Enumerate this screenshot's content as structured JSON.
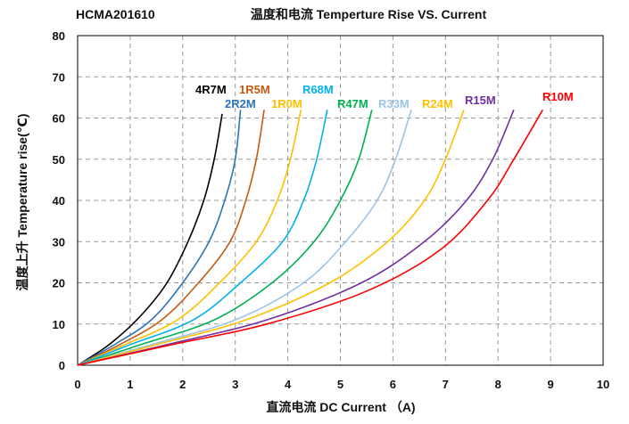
{
  "part_number": "HCMA201610",
  "chart_data": {
    "type": "line",
    "title": "温度和电流 Temperture Rise VS. Current",
    "xlabel": "直流电流 DC Current （A)",
    "ylabel": "温度上升 Temperature rise(℃)",
    "xlim": [
      0,
      10
    ],
    "ylim": [
      0,
      80
    ],
    "xticks": [
      0,
      1,
      2,
      3,
      4,
      5,
      6,
      7,
      8,
      9,
      10
    ],
    "yticks": [
      0,
      10,
      20,
      30,
      40,
      50,
      60,
      70,
      80
    ],
    "grid": true,
    "series": [
      {
        "name": "4R7M",
        "color": "#000000",
        "x": [
          0,
          0.6,
          1.2,
          1.7,
          2.1,
          2.4,
          2.6,
          2.75
        ],
        "y": [
          0,
          5,
          12,
          20,
          30,
          40,
          50,
          61
        ]
      },
      {
        "name": "2R2M",
        "color": "#2e74b5",
        "x": [
          0,
          0.7,
          1.4,
          2.0,
          2.5,
          2.8,
          3.0,
          3.1
        ],
        "y": [
          0,
          5,
          11,
          20,
          30,
          40,
          50,
          62
        ]
      },
      {
        "name": "1R5M",
        "color": "#c55a11",
        "x": [
          0,
          0.8,
          1.6,
          2.3,
          2.9,
          3.2,
          3.4,
          3.55
        ],
        "y": [
          0,
          5,
          11,
          20,
          30,
          40,
          50,
          62
        ]
      },
      {
        "name": "1R0M",
        "color": "#ffc000",
        "x": [
          0,
          0.9,
          1.9,
          2.7,
          3.4,
          3.8,
          4.05,
          4.25
        ],
        "y": [
          0,
          5,
          11,
          20,
          30,
          40,
          50,
          62
        ]
      },
      {
        "name": "R68M",
        "color": "#00b0f0",
        "x": [
          0,
          1.0,
          2.2,
          3.1,
          3.9,
          4.3,
          4.55,
          4.75
        ],
        "y": [
          0,
          5,
          11,
          20,
          30,
          40,
          50,
          62
        ]
      },
      {
        "name": "R47M",
        "color": "#00b050",
        "x": [
          0,
          1.2,
          2.6,
          3.7,
          4.5,
          5.0,
          5.35,
          5.6
        ],
        "y": [
          0,
          5,
          11,
          20,
          30,
          40,
          50,
          62
        ]
      },
      {
        "name": "R33M",
        "color": "#9dc3e6",
        "x": [
          0,
          1.4,
          3.0,
          4.3,
          5.1,
          5.7,
          6.05,
          6.35
        ],
        "y": [
          0,
          5,
          11,
          20,
          30,
          40,
          50,
          62
        ]
      },
      {
        "name": "R24M",
        "color": "#ffc000",
        "x": [
          0,
          1.5,
          3.2,
          4.8,
          5.9,
          6.6,
          7.0,
          7.35
        ],
        "y": [
          0,
          5,
          11,
          20,
          30,
          40,
          50,
          62
        ]
      },
      {
        "name": "R15M",
        "color": "#7030a0",
        "x": [
          0,
          1.7,
          3.6,
          5.4,
          6.6,
          7.4,
          7.9,
          8.3
        ],
        "y": [
          0,
          5,
          11,
          20,
          30,
          40,
          50,
          62
        ]
      },
      {
        "name": "R10M",
        "color": "#ff0000",
        "x": [
          0,
          1.8,
          3.6,
          5.5,
          6.9,
          7.8,
          8.3,
          8.85
        ],
        "y": [
          0,
          5,
          10,
          18,
          28,
          40,
          50,
          62
        ]
      }
    ]
  }
}
